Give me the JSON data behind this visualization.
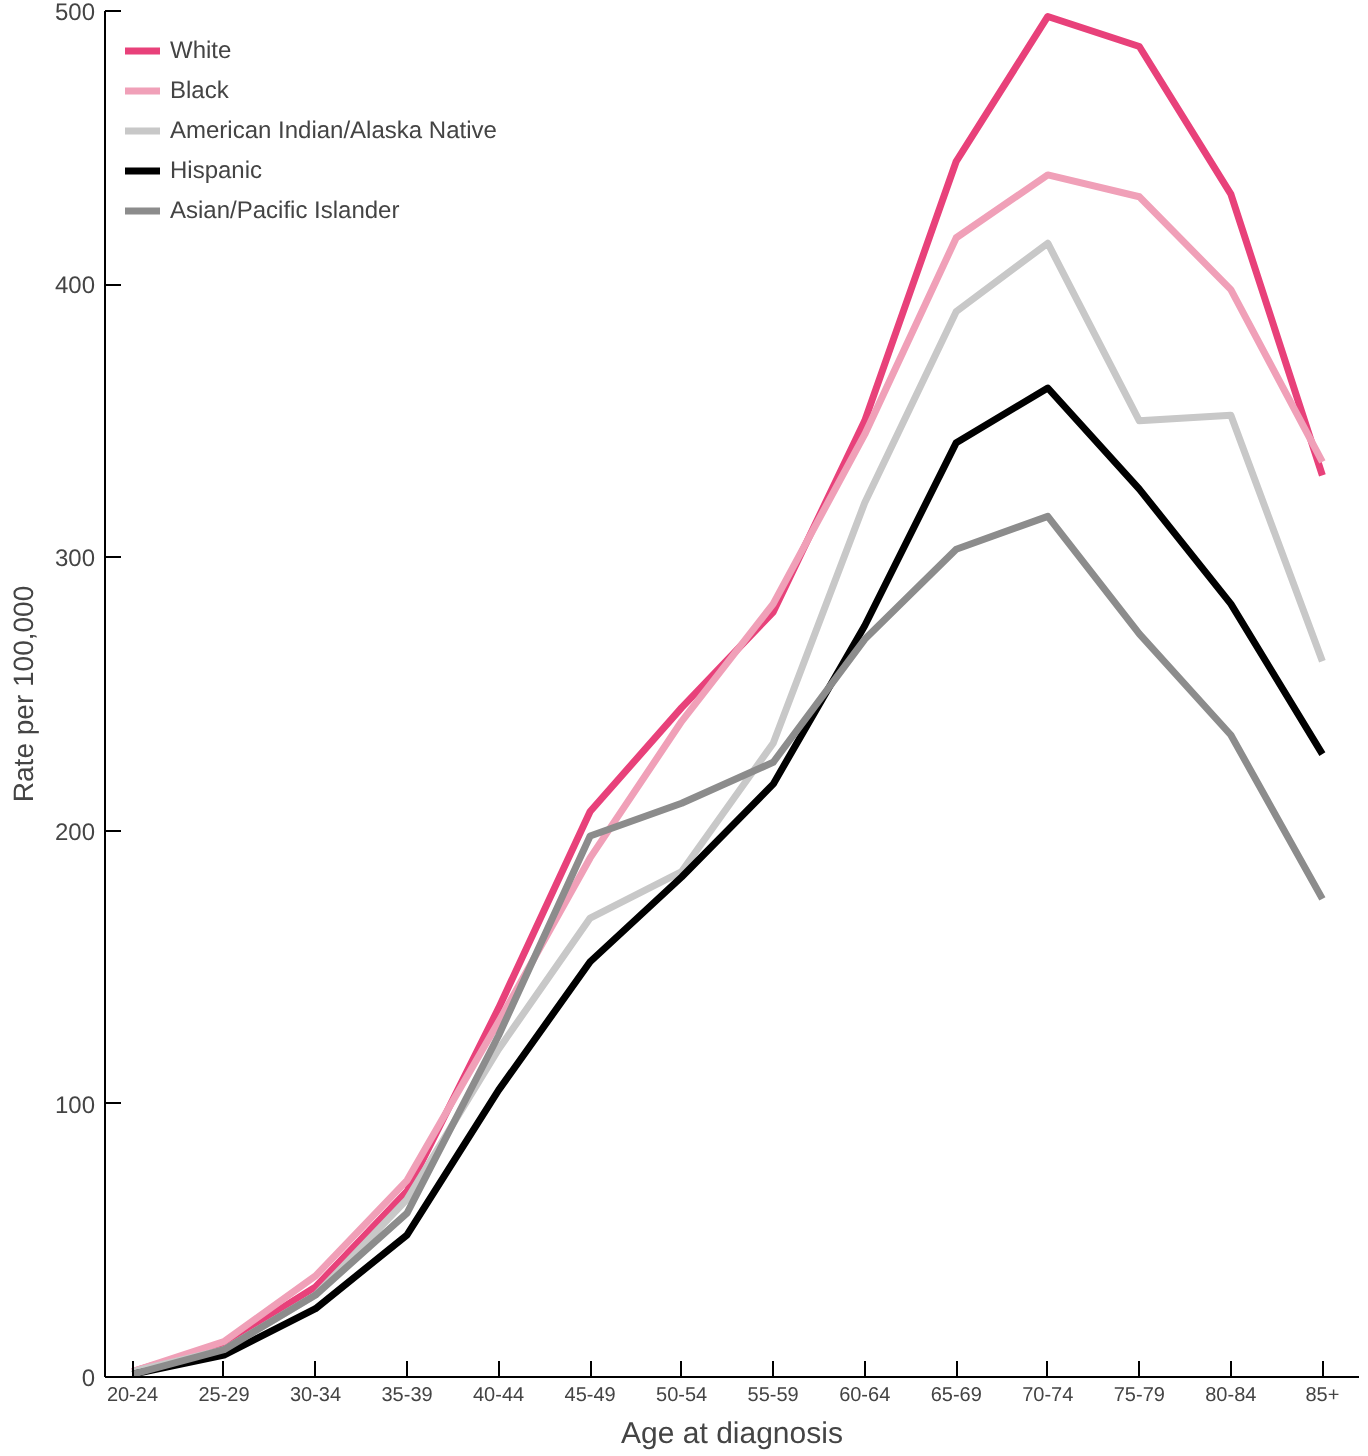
{
  "chart_data": {
    "type": "line",
    "xlabel": "Age at diagnosis",
    "ylabel": "Rate per 100,000",
    "categories": [
      "20-24",
      "25-29",
      "30-34",
      "35-39",
      "40-44",
      "45-49",
      "50-54",
      "55-59",
      "60-64",
      "65-69",
      "70-74",
      "75-79",
      "80-84",
      "85+"
    ],
    "series": [
      {
        "name": "White",
        "color": "#e8417a",
        "values": [
          2,
          12,
          33,
          68,
          135,
          207,
          245,
          280,
          350,
          445,
          498,
          487,
          433,
          330
        ]
      },
      {
        "name": "Black",
        "color": "#f0a0b8",
        "values": [
          2,
          13,
          37,
          72,
          130,
          190,
          240,
          283,
          345,
          417,
          440,
          432,
          398,
          335
        ]
      },
      {
        "name": "American Indian/Alaska Native",
        "color": "#c8c8c8",
        "values": [
          2,
          10,
          30,
          65,
          120,
          168,
          185,
          232,
          320,
          390,
          415,
          350,
          352,
          262
        ]
      },
      {
        "name": "Hispanic",
        "color": "#000000",
        "values": [
          1,
          8,
          25,
          52,
          105,
          152,
          183,
          217,
          275,
          342,
          362,
          325,
          283,
          228
        ]
      },
      {
        "name": "Asian/Pacific Islander",
        "color": "#8c8c8c",
        "values": [
          1,
          10,
          30,
          60,
          125,
          198,
          210,
          225,
          270,
          303,
          315,
          272,
          235,
          175
        ]
      }
    ],
    "ylim": [
      0,
      500
    ],
    "yticks": [
      0,
      100,
      200,
      300,
      400,
      500
    ],
    "grid": false,
    "legend": "top left",
    "marker": "none"
  }
}
